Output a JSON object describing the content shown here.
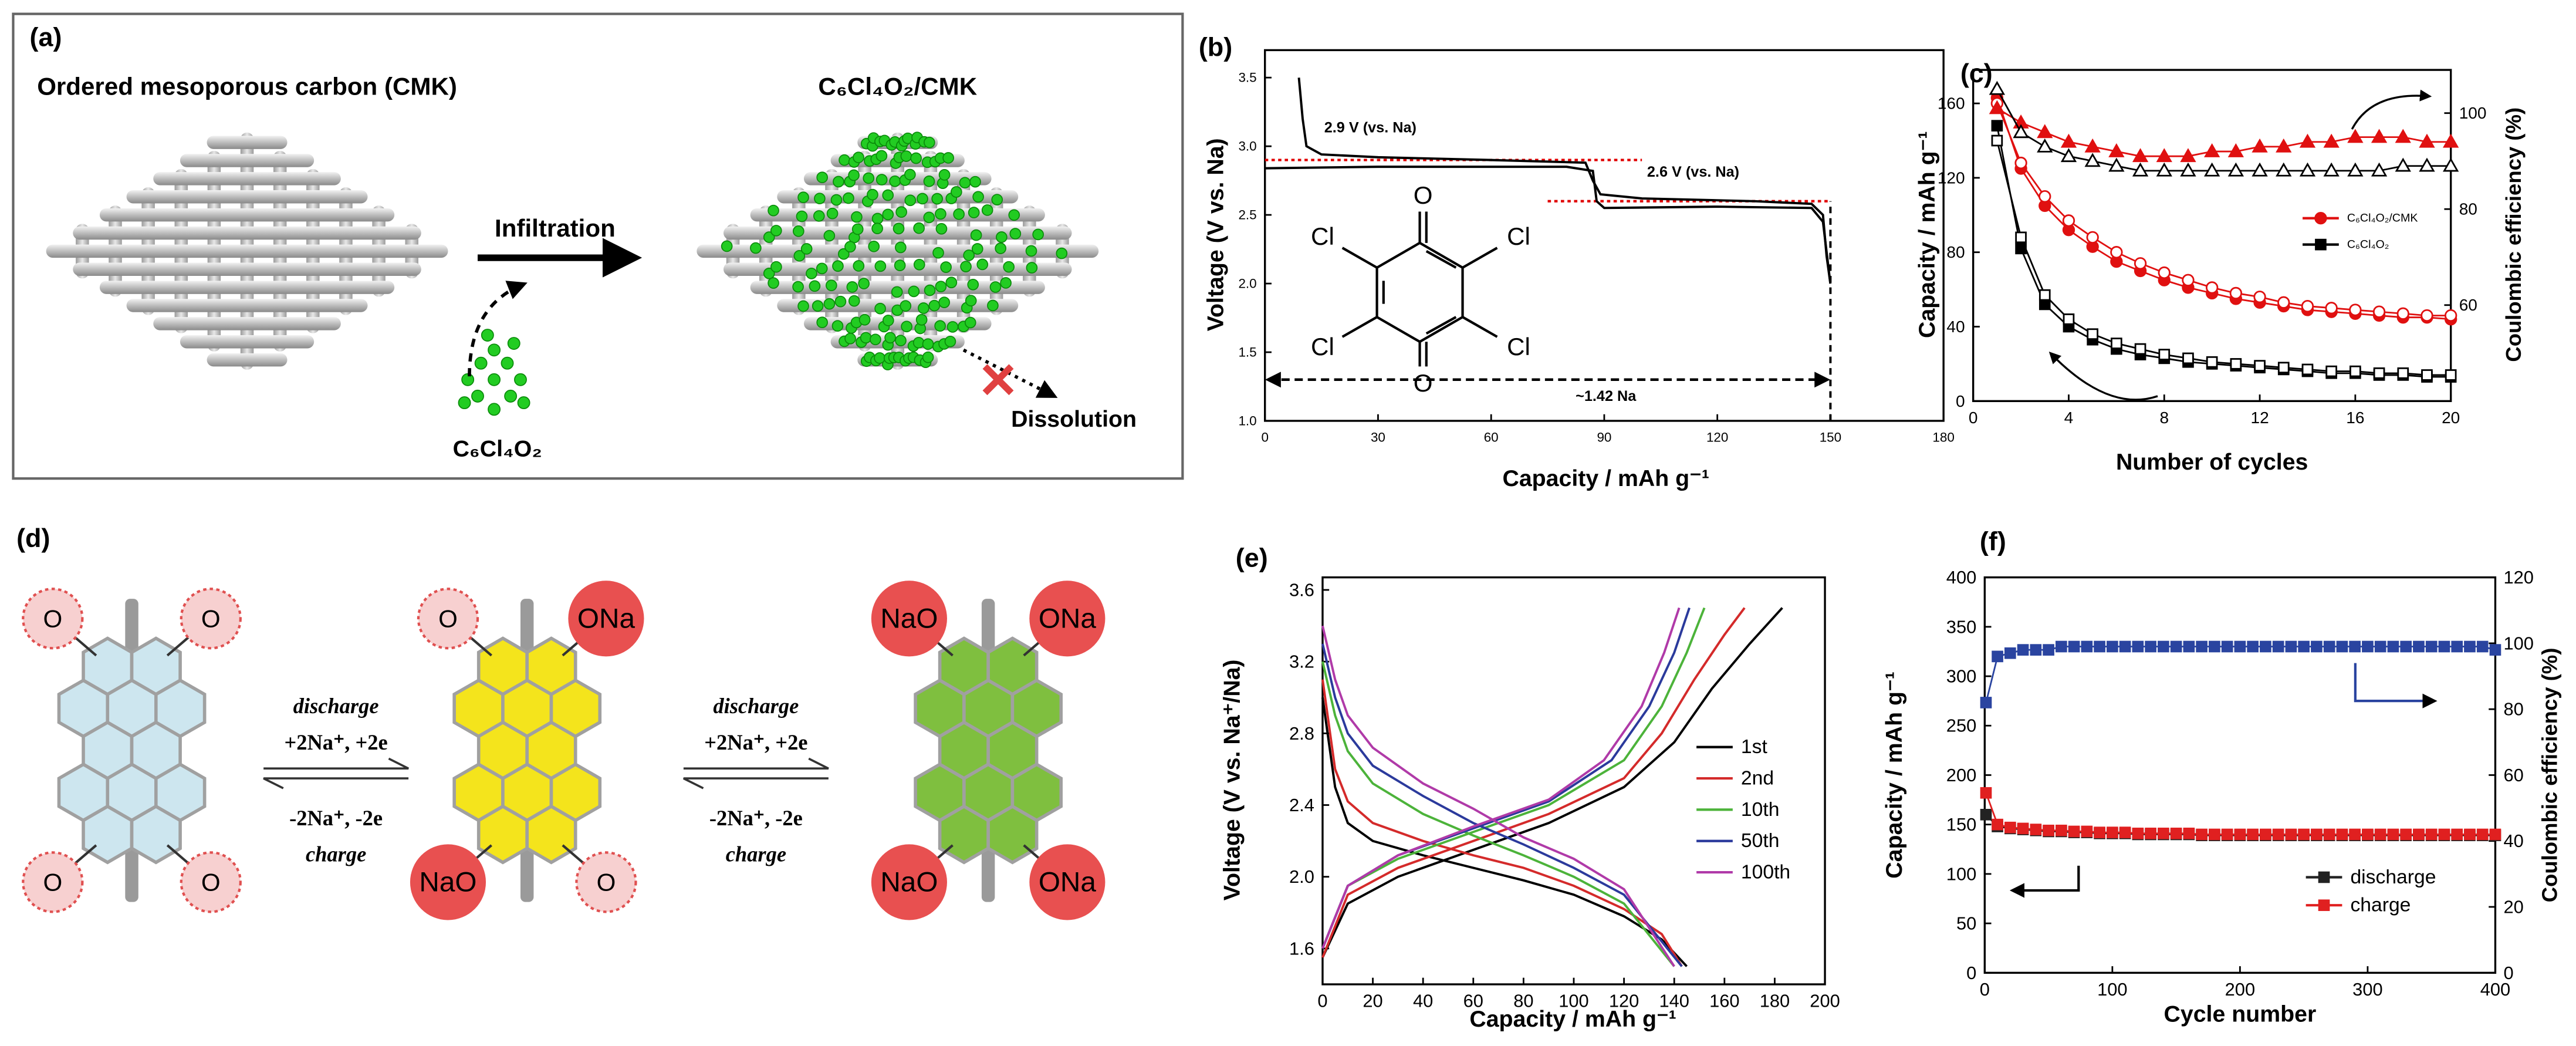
{
  "figure_a": {
    "panel_label": "(a)",
    "left_title": "Ordered mesoporous carbon (CMK)",
    "right_title": "C₆Cl₄O₂/CMK",
    "arrow_label": "Infiltration",
    "molecule": "C₆Cl₄O₂",
    "loss_label": "Dissolution"
  },
  "figure_d": {
    "panel_label": "(d)",
    "molecules": [
      {
        "groups": [
          "O",
          "O",
          "O",
          "O"
        ]
      },
      {
        "groups": [
          "O",
          "ONa",
          "NaO",
          "O"
        ]
      },
      {
        "groups": [
          "NaO",
          "ONa",
          "NaO",
          "ONa"
        ]
      }
    ],
    "steps": [
      {
        "forward": "discharge",
        "forward_ions": "+2Na⁺, +2e",
        "reverse_ions": "-2Na⁺, -2e",
        "reverse": "charge"
      },
      {
        "forward": "discharge",
        "forward_ions": "+2Na⁺, +2e",
        "reverse_ions": "-2Na⁺, -2e",
        "reverse": "charge"
      }
    ]
  },
  "chart_data": [
    {
      "type": "line",
      "panel_label": "(b)",
      "xlabel": "Capacity / mAh g⁻¹",
      "ylabel": "Voltage (V vs. Na)",
      "xlim": [
        0,
        180
      ],
      "xticks": [
        0,
        30,
        60,
        90,
        120,
        150,
        180
      ],
      "ylim": [
        1.0,
        3.7
      ],
      "yticks": [
        {
          "value": 1,
          "label": "1.0"
        },
        1.5,
        {
          "value": 2,
          "label": "2.0"
        },
        2.5,
        {
          "value": 3,
          "label": "3.0"
        },
        3.5
      ],
      "series": [
        {
          "color": "#000000",
          "x": [
            9,
            10,
            11,
            15,
            30,
            60,
            85,
            87,
            89,
            100,
            130,
            145,
            148,
            149,
            150
          ],
          "values": [
            3.5,
            3.2,
            3.0,
            2.94,
            2.92,
            2.9,
            2.88,
            2.75,
            2.65,
            2.62,
            2.6,
            2.58,
            2.5,
            2.2,
            2.0
          ]
        },
        {
          "color": "#000000",
          "x": [
            0,
            30,
            60,
            80,
            87,
            88,
            90,
            120,
            145,
            148,
            150
          ],
          "values": [
            2.84,
            2.85,
            2.85,
            2.85,
            2.82,
            2.6,
            2.55,
            2.56,
            2.55,
            2.45,
            2.0
          ]
        }
      ],
      "reference_lines": [
        {
          "value": 2.9,
          "xrange": [
            0,
            100
          ],
          "color": "#e00000"
        },
        {
          "value": 2.6,
          "xrange": [
            75,
            150
          ],
          "color": "#e00000"
        }
      ],
      "annotations": [
        "2.9 V (vs. Na)",
        "2.6 V (vs. Na)"
      ],
      "span": {
        "from": 0,
        "to": 150,
        "y": 1.3,
        "label": "~1.42 Na"
      },
      "molecule_labels": [
        "O",
        "Cl",
        "Cl",
        "Cl",
        "Cl",
        "O"
      ]
    },
    {
      "type": "line",
      "panel_label": "(c)",
      "xlabel": "Number of cycles",
      "ylabel": "Capacity / mAh g⁻¹",
      "y2label": "Coulombic efficiency (%)",
      "xlim": [
        0,
        20
      ],
      "xticks": [
        0,
        4,
        8,
        12,
        16,
        20
      ],
      "ylim": [
        0,
        178
      ],
      "yticks": [
        0,
        40,
        80,
        120,
        160
      ],
      "y2lim": [
        40,
        109
      ],
      "y2ticks": [
        60,
        80,
        100
      ],
      "x": [
        1,
        2,
        3,
        4,
        5,
        6,
        7,
        8,
        9,
        10,
        11,
        12,
        13,
        14,
        15,
        16,
        17,
        18,
        19,
        20
      ],
      "series": [
        {
          "name": "C₆Cl₄O₂/CMK",
          "color": "#e01010",
          "marker": "circle",
          "values": [
            163,
            125,
            105,
            92,
            83,
            75,
            70,
            65,
            61,
            58,
            55,
            53,
            51,
            49,
            48,
            47,
            46,
            45,
            45,
            44
          ]
        },
        {
          "color": "#e01010",
          "marker": "circle-open",
          "values": [
            160,
            128,
            110,
            97,
            88,
            80,
            74,
            69,
            65,
            61,
            58,
            56,
            53,
            51,
            50,
            49,
            48,
            47,
            46,
            46
          ]
        },
        {
          "name": "C₆Cl₄O₂",
          "color": "#000000",
          "marker": "square",
          "values": [
            148,
            82,
            52,
            40,
            33,
            28,
            25,
            23,
            21,
            20,
            19,
            18,
            17,
            16,
            15,
            15,
            14,
            14,
            13,
            13
          ]
        },
        {
          "color": "#000000",
          "marker": "square-open",
          "values": [
            140,
            88,
            57,
            44,
            36,
            31,
            28,
            25,
            23,
            21,
            20,
            19,
            18,
            17,
            16,
            16,
            15,
            15,
            14,
            14
          ]
        },
        {
          "color": "#e01010",
          "marker": "triangle",
          "axis": "y2",
          "values": [
            101,
            98,
            96,
            94,
            93,
            92,
            91,
            91,
            91,
            92,
            92,
            93,
            93,
            94,
            94,
            95,
            95,
            95,
            94,
            94
          ]
        },
        {
          "color": "#000000",
          "marker": "triangle-open",
          "axis": "y2",
          "values": [
            105,
            96,
            93,
            91,
            90,
            89,
            88,
            88,
            88,
            88,
            88,
            88,
            88,
            88,
            88,
            88,
            88,
            89,
            89,
            89
          ]
        }
      ]
    },
    {
      "type": "line",
      "panel_label": "(e)",
      "xlabel": "Capacity / mAh g⁻¹",
      "ylabel": "Voltage (V vs. Na⁺/Na)",
      "xlim": [
        0,
        200
      ],
      "xticks": [
        0,
        20,
        40,
        60,
        80,
        100,
        120,
        140,
        160,
        180,
        200
      ],
      "ylim": [
        1.4,
        3.67
      ],
      "yticks": [
        1.6,
        {
          "value": 2,
          "label": "2.0"
        },
        2.4,
        2.8,
        3.2,
        3.6
      ],
      "legend": "right",
      "series": [
        {
          "name": "1st",
          "color": "#000000",
          "x": [
            0,
            5,
            10,
            20,
            40,
            60,
            80,
            100,
            120,
            135,
            145,
            null,
            0,
            10,
            30,
            60,
            90,
            120,
            140,
            155,
            170,
            183
          ],
          "values": [
            3.0,
            2.5,
            2.3,
            2.2,
            2.12,
            2.05,
            1.98,
            1.9,
            1.78,
            1.65,
            1.5,
            null,
            1.55,
            1.85,
            2.0,
            2.15,
            2.3,
            2.5,
            2.75,
            3.05,
            3.3,
            3.5
          ]
        },
        {
          "name": "2nd",
          "color": "#d42a2a",
          "x": [
            0,
            5,
            10,
            20,
            40,
            60,
            80,
            100,
            120,
            135,
            143,
            null,
            0,
            10,
            30,
            60,
            90,
            120,
            135,
            148,
            160,
            168
          ],
          "values": [
            3.1,
            2.6,
            2.42,
            2.3,
            2.2,
            2.12,
            2.05,
            1.95,
            1.82,
            1.68,
            1.5,
            null,
            1.55,
            1.9,
            2.05,
            2.2,
            2.35,
            2.55,
            2.8,
            3.1,
            3.35,
            3.5
          ]
        },
        {
          "name": "10th",
          "color": "#4cb33a",
          "x": [
            0,
            5,
            10,
            20,
            40,
            60,
            80,
            100,
            120,
            140,
            null,
            0,
            10,
            30,
            60,
            90,
            120,
            135,
            145,
            152
          ],
          "values": [
            3.2,
            2.9,
            2.7,
            2.52,
            2.35,
            2.23,
            2.12,
            2.0,
            1.85,
            1.5,
            null,
            1.6,
            1.95,
            2.1,
            2.25,
            2.4,
            2.65,
            2.95,
            3.25,
            3.5
          ]
        },
        {
          "name": "50th",
          "color": "#2b3a9c",
          "x": [
            0,
            5,
            10,
            20,
            40,
            60,
            80,
            100,
            120,
            143,
            null,
            0,
            10,
            30,
            60,
            90,
            115,
            130,
            140,
            146
          ],
          "values": [
            3.3,
            3.0,
            2.8,
            2.62,
            2.45,
            2.3,
            2.18,
            2.05,
            1.9,
            1.5,
            null,
            1.6,
            1.95,
            2.12,
            2.27,
            2.42,
            2.65,
            2.95,
            3.25,
            3.5
          ]
        },
        {
          "name": "100th",
          "color": "#b03aa8",
          "x": [
            0,
            5,
            10,
            20,
            40,
            60,
            80,
            100,
            120,
            140,
            null,
            0,
            10,
            30,
            60,
            90,
            112,
            127,
            136,
            142
          ],
          "values": [
            3.4,
            3.1,
            2.9,
            2.72,
            2.52,
            2.38,
            2.22,
            2.1,
            1.93,
            1.5,
            null,
            1.6,
            1.95,
            2.12,
            2.28,
            2.43,
            2.65,
            2.95,
            3.25,
            3.5
          ]
        }
      ]
    },
    {
      "type": "line",
      "panel_label": "(f)",
      "xlabel": "Cycle number",
      "ylabel": "Capacity / mAh g⁻¹",
      "y2label": "Coulombic efficiency (%)",
      "xlim": [
        0,
        400
      ],
      "xticks": [
        0,
        100,
        200,
        300,
        400
      ],
      "ylim": [
        0,
        400
      ],
      "yticks": [
        0,
        50,
        100,
        150,
        200,
        250,
        300,
        350,
        400
      ],
      "y2lim": [
        0,
        120
      ],
      "y2ticks": [
        0,
        20,
        40,
        60,
        80,
        100,
        120
      ],
      "x": [
        1,
        10,
        20,
        30,
        40,
        50,
        60,
        70,
        80,
        90,
        100,
        110,
        120,
        130,
        140,
        150,
        160,
        170,
        180,
        190,
        200,
        210,
        220,
        230,
        240,
        250,
        260,
        270,
        280,
        290,
        300,
        310,
        320,
        330,
        340,
        350,
        360,
        370,
        380,
        390,
        400
      ],
      "series": [
        {
          "name": "discharge",
          "color": "#222222",
          "marker": "square",
          "values": [
            160,
            148,
            146,
            145,
            144,
            143,
            143,
            142,
            142,
            141,
            141,
            141,
            140,
            140,
            140,
            140,
            140,
            139,
            139,
            139,
            139,
            139,
            139,
            139,
            139,
            139,
            139,
            139,
            139,
            139,
            139,
            139,
            139,
            139,
            139,
            139,
            139,
            139,
            139,
            139,
            139
          ]
        },
        {
          "name": "charge",
          "color": "#e02020",
          "marker": "square",
          "values": [
            182,
            150,
            147,
            146,
            145,
            144,
            144,
            143,
            143,
            142,
            142,
            142,
            141,
            141,
            141,
            141,
            141,
            140,
            140,
            140,
            140,
            140,
            140,
            140,
            140,
            140,
            140,
            140,
            140,
            140,
            140,
            140,
            140,
            140,
            140,
            140,
            140,
            140,
            140,
            140,
            140
          ]
        },
        {
          "color": "#2a44a0",
          "marker": "square",
          "axis": "y2",
          "values": [
            82,
            96,
            97,
            98,
            98,
            98,
            99,
            99,
            99,
            99,
            99,
            99,
            99,
            99,
            99,
            99,
            99,
            99,
            99,
            99,
            99,
            99,
            99,
            99,
            99,
            99,
            99,
            99,
            99,
            99,
            99,
            99,
            99,
            99,
            99,
            99,
            99,
            99,
            99,
            99,
            98
          ]
        }
      ]
    }
  ]
}
